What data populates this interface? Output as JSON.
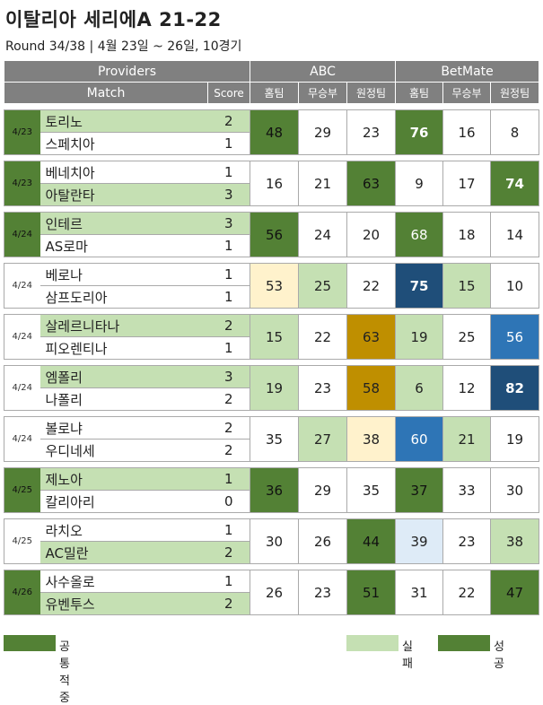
{
  "title": "이탈리아 세리에A 21-22",
  "subtitle": "Round 34/38 | 4월 23일 ~ 26일, 10경기",
  "headers": {
    "providers": "Providers",
    "abc": "ABC",
    "betmate": "BetMate",
    "match": "Match",
    "score": "Score",
    "home": "홈팀",
    "draw": "무승부",
    "away": "원정팀"
  },
  "colors": {
    "header_gray": "#808080",
    "light_green": "#c5e0b3",
    "dark_green": "#538135",
    "light_yellow": "#fff2cc",
    "gold": "#bf8f00",
    "navy": "#1f4e79",
    "mid_blue": "#2e75b6",
    "light_blue": "#deebf7"
  },
  "matches": [
    {
      "date": "4/23",
      "home": "토리노",
      "away": "스페치아",
      "hs": "2",
      "as": "1",
      "win": "home",
      "abc": [
        "48",
        "29",
        "23"
      ],
      "bm": [
        "76",
        "16",
        "8"
      ],
      "abc_c": [
        "dg",
        "white",
        "white"
      ],
      "bm_c": [
        "dgw b",
        "white",
        "white"
      ],
      "date_c": "dg"
    },
    {
      "date": "4/23",
      "home": "베네치아",
      "away": "아탈란타",
      "hs": "1",
      "as": "3",
      "win": "away",
      "abc": [
        "16",
        "21",
        "63"
      ],
      "bm": [
        "9",
        "17",
        "74"
      ],
      "abc_c": [
        "white",
        "white",
        "dg"
      ],
      "bm_c": [
        "white",
        "white",
        "dgw b"
      ],
      "date_c": "dg"
    },
    {
      "date": "4/24",
      "home": "인테르",
      "away": "AS로마",
      "hs": "3",
      "as": "1",
      "win": "home",
      "abc": [
        "56",
        "24",
        "20"
      ],
      "bm": [
        "68",
        "18",
        "14"
      ],
      "abc_c": [
        "dg",
        "white",
        "white"
      ],
      "bm_c": [
        "dgw",
        "white",
        "white"
      ],
      "date_c": "dg"
    },
    {
      "date": "4/24",
      "home": "베로나",
      "away": "삼프도리아",
      "hs": "1",
      "as": "1",
      "win": "none",
      "abc": [
        "53",
        "25",
        "22"
      ],
      "bm": [
        "75",
        "15",
        "10"
      ],
      "abc_c": [
        "yel",
        "lg",
        "white"
      ],
      "bm_c": [
        "nvy b",
        "lg",
        "white"
      ],
      "date_c": "white"
    },
    {
      "date": "4/24",
      "home": "살레르니타나",
      "away": "피오렌티나",
      "hs": "2",
      "as": "1",
      "win": "home",
      "abc": [
        "15",
        "22",
        "63"
      ],
      "bm": [
        "19",
        "25",
        "56"
      ],
      "abc_c": [
        "lg",
        "white",
        "gold"
      ],
      "bm_c": [
        "lg",
        "white",
        "mblu"
      ],
      "date_c": "white"
    },
    {
      "date": "4/24",
      "home": "엠폴리",
      "away": "나폴리",
      "hs": "3",
      "as": "2",
      "win": "home",
      "abc": [
        "19",
        "23",
        "58"
      ],
      "bm": [
        "6",
        "12",
        "82"
      ],
      "abc_c": [
        "lg",
        "white",
        "gold"
      ],
      "bm_c": [
        "lg",
        "white",
        "nvy b"
      ],
      "date_c": "white"
    },
    {
      "date": "4/24",
      "home": "볼로냐",
      "away": "우디네세",
      "hs": "2",
      "as": "2",
      "win": "none",
      "abc": [
        "35",
        "27",
        "38"
      ],
      "bm": [
        "60",
        "21",
        "19"
      ],
      "abc_c": [
        "white",
        "lg",
        "yel"
      ],
      "bm_c": [
        "mblu",
        "lg",
        "white"
      ],
      "date_c": "white"
    },
    {
      "date": "4/25",
      "home": "제노아",
      "away": "칼리아리",
      "hs": "1",
      "as": "0",
      "win": "home",
      "abc": [
        "36",
        "29",
        "35"
      ],
      "bm": [
        "37",
        "33",
        "30"
      ],
      "abc_c": [
        "dg",
        "white",
        "white"
      ],
      "bm_c": [
        "dg",
        "white",
        "white"
      ],
      "date_c": "dg"
    },
    {
      "date": "4/25",
      "home": "라치오",
      "away": "AC밀란",
      "hs": "1",
      "as": "2",
      "win": "away",
      "abc": [
        "30",
        "26",
        "44"
      ],
      "bm": [
        "39",
        "23",
        "38"
      ],
      "abc_c": [
        "white",
        "white",
        "dg"
      ],
      "bm_c": [
        "lblu",
        "white",
        "lg"
      ],
      "date_c": "white"
    },
    {
      "date": "4/26",
      "home": "사수올로",
      "away": "유벤투스",
      "hs": "1",
      "as": "2",
      "win": "away",
      "abc": [
        "26",
        "23",
        "51"
      ],
      "bm": [
        "31",
        "22",
        "47"
      ],
      "abc_c": [
        "white",
        "white",
        "dg"
      ],
      "bm_c": [
        "white",
        "white",
        "dg"
      ],
      "date_c": "dg"
    }
  ],
  "legend": [
    {
      "label": "공통적중"
    },
    {
      "label": "실패"
    },
    {
      "label": "성공"
    }
  ]
}
